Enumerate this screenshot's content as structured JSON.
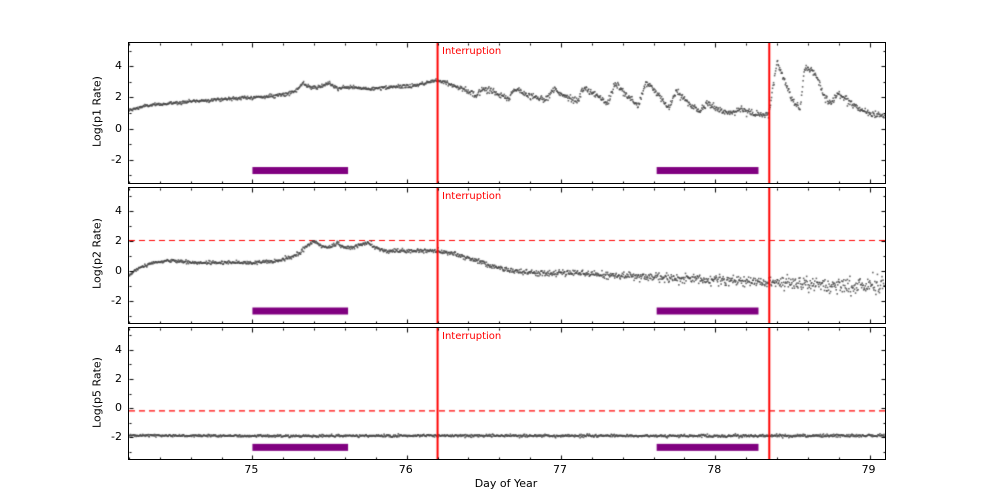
{
  "figure": {
    "background": "#ffffff",
    "axis_color": "#000000",
    "point_color": "#404040",
    "xlabel": "Day of Year",
    "xlim": [
      74.2,
      79.1
    ],
    "xticks": [
      75,
      76,
      77,
      78,
      79
    ],
    "xtick_minor_step": 0.2,
    "overlays": {
      "interruption_label": "Interruption",
      "interruption_color": "#ff0000",
      "interruption_x": [
        76.2,
        78.35
      ],
      "bar_color": "#800080",
      "bar_y": -2.7,
      "bar_ranges": [
        [
          75.0,
          75.62
        ],
        [
          77.62,
          78.28
        ]
      ],
      "dashed_color": "#ff0000"
    }
  },
  "chart_data": [
    {
      "type": "scatter",
      "name": "p1",
      "ylabel": "Log(p1 Rate)",
      "ylim": [
        -3.5,
        5.5
      ],
      "yticks": [
        -2,
        0,
        2,
        4
      ],
      "dashed_line_y": null,
      "point_step_days": 0.0033,
      "anchors": [
        [
          74.2,
          1.15
        ],
        [
          74.3,
          1.45
        ],
        [
          74.45,
          1.6
        ],
        [
          74.6,
          1.75
        ],
        [
          74.75,
          1.85
        ],
        [
          74.9,
          1.95
        ],
        [
          75.0,
          2.0
        ],
        [
          75.1,
          2.05
        ],
        [
          75.2,
          2.2
        ],
        [
          75.28,
          2.4
        ],
        [
          75.33,
          2.9
        ],
        [
          75.38,
          2.6
        ],
        [
          75.45,
          2.7
        ],
        [
          75.5,
          2.9
        ],
        [
          75.55,
          2.6
        ],
        [
          75.65,
          2.65
        ],
        [
          75.75,
          2.55
        ],
        [
          75.85,
          2.6
        ],
        [
          75.95,
          2.7
        ],
        [
          76.05,
          2.75
        ],
        [
          76.15,
          3.0
        ],
        [
          76.2,
          3.1
        ],
        [
          76.25,
          3.0
        ],
        [
          76.3,
          2.8
        ],
        [
          76.4,
          2.4
        ],
        [
          76.45,
          2.1
        ],
        [
          76.5,
          2.6
        ],
        [
          76.6,
          2.2
        ],
        [
          76.65,
          1.9
        ],
        [
          76.7,
          2.5
        ],
        [
          76.8,
          2.1
        ],
        [
          76.9,
          1.9
        ],
        [
          76.95,
          2.5
        ],
        [
          77.05,
          2.0
        ],
        [
          77.1,
          1.7
        ],
        [
          77.15,
          2.6
        ],
        [
          77.25,
          2.0
        ],
        [
          77.3,
          1.6
        ],
        [
          77.35,
          2.9
        ],
        [
          77.45,
          1.9
        ],
        [
          77.5,
          1.4
        ],
        [
          77.55,
          3.0
        ],
        [
          77.65,
          2.0
        ],
        [
          77.7,
          1.3
        ],
        [
          77.75,
          2.4
        ],
        [
          77.85,
          1.4
        ],
        [
          77.9,
          1.1
        ],
        [
          77.95,
          1.6
        ],
        [
          78.05,
          1.1
        ],
        [
          78.1,
          0.95
        ],
        [
          78.15,
          1.3
        ],
        [
          78.25,
          0.95
        ],
        [
          78.3,
          0.85
        ],
        [
          78.35,
          1.0
        ],
        [
          78.4,
          4.3
        ],
        [
          78.45,
          3.0
        ],
        [
          78.5,
          1.8
        ],
        [
          78.55,
          1.3
        ],
        [
          78.58,
          4.0
        ],
        [
          78.65,
          3.6
        ],
        [
          78.7,
          2.2
        ],
        [
          78.75,
          1.6
        ],
        [
          78.8,
          2.3
        ],
        [
          78.85,
          1.9
        ],
        [
          78.9,
          1.5
        ],
        [
          78.95,
          1.2
        ],
        [
          79.0,
          1.0
        ],
        [
          79.05,
          0.85
        ],
        [
          79.1,
          0.9
        ]
      ],
      "noise_anchors": [
        [
          74.2,
          0.05
        ],
        [
          76.2,
          0.06
        ],
        [
          76.3,
          0.1
        ],
        [
          79.1,
          0.12
        ]
      ]
    },
    {
      "type": "scatter",
      "name": "p2",
      "ylabel": "Log(p2 Rate)",
      "ylim": [
        -3.5,
        5.5
      ],
      "yticks": [
        -2,
        0,
        2,
        4
      ],
      "dashed_line_y": 2,
      "point_step_days": 0.0033,
      "anchors": [
        [
          74.2,
          -0.35
        ],
        [
          74.25,
          0.1
        ],
        [
          74.35,
          0.5
        ],
        [
          74.45,
          0.65
        ],
        [
          74.55,
          0.6
        ],
        [
          74.65,
          0.5
        ],
        [
          74.75,
          0.5
        ],
        [
          74.85,
          0.55
        ],
        [
          74.95,
          0.5
        ],
        [
          75.05,
          0.55
        ],
        [
          75.15,
          0.6
        ],
        [
          75.25,
          0.9
        ],
        [
          75.3,
          1.1
        ],
        [
          75.35,
          1.6
        ],
        [
          75.4,
          1.95
        ],
        [
          75.45,
          1.6
        ],
        [
          75.5,
          1.55
        ],
        [
          75.55,
          1.8
        ],
        [
          75.6,
          1.5
        ],
        [
          75.65,
          1.55
        ],
        [
          75.7,
          1.7
        ],
        [
          75.75,
          1.85
        ],
        [
          75.8,
          1.5
        ],
        [
          75.85,
          1.35
        ],
        [
          75.95,
          1.3
        ],
        [
          76.05,
          1.3
        ],
        [
          76.15,
          1.35
        ],
        [
          76.2,
          1.3
        ],
        [
          76.3,
          1.15
        ],
        [
          76.4,
          0.85
        ],
        [
          76.5,
          0.5
        ],
        [
          76.6,
          0.15
        ],
        [
          76.7,
          -0.05
        ],
        [
          76.8,
          -0.15
        ],
        [
          76.9,
          -0.2
        ],
        [
          77.0,
          -0.15
        ],
        [
          77.1,
          -0.2
        ],
        [
          77.2,
          -0.25
        ],
        [
          77.3,
          -0.3
        ],
        [
          77.4,
          -0.35
        ],
        [
          77.5,
          -0.4
        ],
        [
          77.6,
          -0.45
        ],
        [
          77.7,
          -0.5
        ],
        [
          77.8,
          -0.55
        ],
        [
          77.9,
          -0.6
        ],
        [
          78.0,
          -0.6
        ],
        [
          78.1,
          -0.65
        ],
        [
          78.2,
          -0.7
        ],
        [
          78.3,
          -0.75
        ],
        [
          78.4,
          -0.8
        ],
        [
          78.5,
          -0.85
        ],
        [
          78.6,
          -0.9
        ],
        [
          78.7,
          -0.95
        ],
        [
          78.8,
          -1.0
        ],
        [
          78.9,
          -1.0
        ],
        [
          79.0,
          -1.0
        ],
        [
          79.1,
          -0.95
        ]
      ],
      "noise_anchors": [
        [
          74.2,
          0.05
        ],
        [
          76.3,
          0.07
        ],
        [
          77.0,
          0.1
        ],
        [
          78.0,
          0.18
        ],
        [
          79.1,
          0.28
        ]
      ]
    },
    {
      "type": "scatter",
      "name": "p5",
      "ylabel": "Log(p5 Rate)",
      "ylim": [
        -3.5,
        5.5
      ],
      "yticks": [
        -2,
        0,
        2,
        4
      ],
      "dashed_line_y": -0.2,
      "point_step_days": 0.0033,
      "anchors": [
        [
          74.2,
          -1.88
        ],
        [
          75.0,
          -1.92
        ],
        [
          76.0,
          -1.9
        ],
        [
          77.0,
          -1.9
        ],
        [
          78.0,
          -1.92
        ],
        [
          79.1,
          -1.9
        ]
      ],
      "noise_anchors": [
        [
          74.2,
          0.04
        ],
        [
          79.1,
          0.05
        ]
      ]
    }
  ]
}
